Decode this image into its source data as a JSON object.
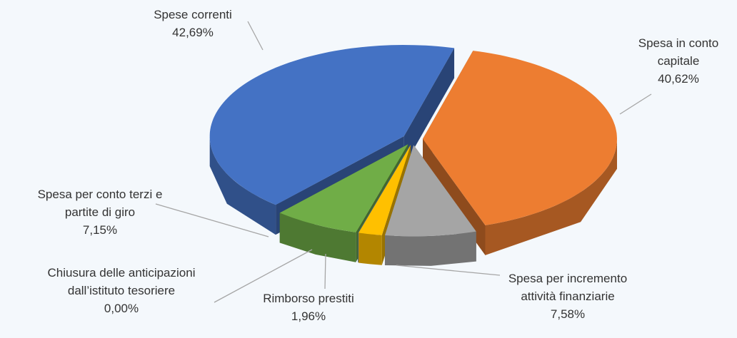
{
  "chart_data": {
    "type": "pie",
    "categories": [
      "Spesa in conto capitale",
      "Spesa per incremento attività finanziarie",
      "Rimborso prestiti",
      "Chiusura delle anticipazioni dall’istituto tesoriere",
      "Spesa per conto terzi e partite di giro",
      "Spese correnti"
    ],
    "values": [
      40.62,
      7.58,
      1.96,
      0.0,
      7.15,
      42.69
    ],
    "value_labels": [
      "40,62%",
      "7,58%",
      "1,96%",
      "0,00%",
      "7,15%",
      "42,69%"
    ],
    "colors": [
      "#ed7d31",
      "#a5a5a5",
      "#ffc000",
      "#5b9bd5",
      "#70ad47",
      "#4472c4"
    ]
  }
}
